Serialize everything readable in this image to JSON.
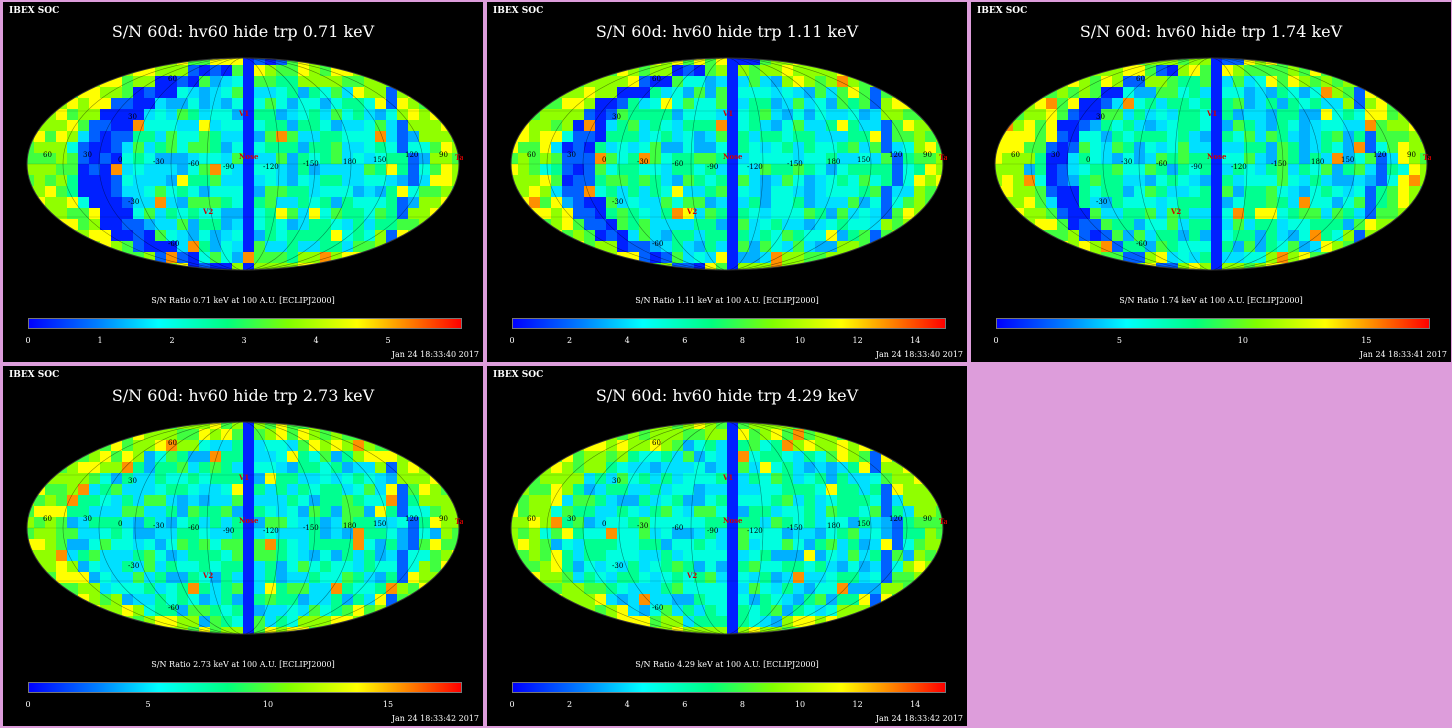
{
  "panels": [
    {
      "header": "IBEX SOC",
      "title": "S/N  60d: hv60 hide trp 0.71 keV",
      "caption": "S/N Ratio 0.71 keV at 100 A.U. [ECLIPJ2000]",
      "ticks": [
        "0",
        "1",
        "2",
        "3",
        "4",
        "5"
      ],
      "max": 6,
      "date": "Jan 24 18:33:40 2017",
      "map_labels": {
        "lat60": "60",
        "lat30": "30",
        "latm30": "-30",
        "latm60": "-60",
        "lon60": "60",
        "lon30": "30",
        "lon0": "0",
        "lonm30": "-30",
        "lonm60": "-60",
        "lonm90": "-90",
        "lonm120": "-120",
        "lonm150": "-150",
        "lon180": "180",
        "lon150": "150",
        "lon120": "120",
        "lon90": "90",
        "nose": "Nose",
        "tail": "Tail",
        "v1": "V1",
        "v2": "V2"
      }
    },
    {
      "header": "IBEX SOC",
      "title": "S/N  60d: hv60 hide trp 1.11 keV",
      "caption": "S/N Ratio 1.11 keV at 100 A.U. [ECLIPJ2000]",
      "ticks": [
        "0",
        "2",
        "4",
        "6",
        "8",
        "10",
        "12",
        "14"
      ],
      "max": 15,
      "date": "Jan 24 18:33:40 2017",
      "map_labels": {
        "lat60": "60",
        "lat30": "30",
        "latm30": "-30",
        "latm60": "-60",
        "lon60": "60",
        "lon30": "30",
        "lon0": "0",
        "lonm30": "-30",
        "lonm60": "-60",
        "lonm90": "-90",
        "lonm120": "-120",
        "lonm150": "-150",
        "lon180": "180",
        "lon150": "150",
        "lon120": "120",
        "lon90": "90",
        "nose": "Nose",
        "tail": "Tail",
        "v1": "V1",
        "v2": "V2"
      }
    },
    {
      "header": "IBEX SOC",
      "title": "S/N  60d: hv60 hide trp 1.74 keV",
      "caption": "S/N Ratio 1.74 keV at 100 A.U. [ECLIPJ2000]",
      "ticks": [
        "0",
        "5",
        "10",
        "15"
      ],
      "max": 17.5,
      "date": "Jan 24 18:33:41 2017",
      "map_labels": {
        "lat60": "60",
        "lat30": "30",
        "latm30": "-30",
        "latm60": "-60",
        "lon60": "60",
        "lon30": "30",
        "lon0": "0",
        "lonm30": "-30",
        "lonm60": "-60",
        "lonm90": "-90",
        "lonm120": "-120",
        "lonm150": "-150",
        "lon180": "180",
        "lon150": "150",
        "lon120": "120",
        "lon90": "90",
        "nose": "Nose",
        "tail": "Tail",
        "v1": "V1",
        "v2": "V2"
      }
    },
    {
      "header": "IBEX SOC",
      "title": "S/N  60d: hv60 hide trp 2.73 keV",
      "caption": "S/N Ratio 2.73 keV at 100 A.U. [ECLIPJ2000]",
      "ticks": [
        "0",
        "5",
        "10",
        "15"
      ],
      "max": 18,
      "date": "Jan 24 18:33:42 2017",
      "map_labels": {
        "lat60": "60",
        "lat30": "30",
        "latm30": "-30",
        "latm60": "-60",
        "lon60": "60",
        "lon30": "30",
        "lon0": "0",
        "lonm30": "-30",
        "lonm60": "-60",
        "lonm90": "-90",
        "lonm120": "-120",
        "lonm150": "-150",
        "lon180": "180",
        "lon150": "150",
        "lon120": "120",
        "lon90": "90",
        "nose": "Nose",
        "tail": "Tail",
        "v1": "V1",
        "v2": "V2"
      }
    },
    {
      "header": "IBEX SOC",
      "title": "S/N  60d: hv60 hide trp 4.29 keV",
      "caption": "S/N Ratio 4.29 keV at 100 A.U. [ECLIPJ2000]",
      "ticks": [
        "0",
        "2",
        "4",
        "6",
        "8",
        "10",
        "12",
        "14"
      ],
      "max": 15,
      "date": "Jan 24 18:33:42 2017",
      "map_labels": {
        "lat60": "60",
        "lat30": "30",
        "latm30": "-30",
        "latm60": "-60",
        "lon60": "60",
        "lon30": "30",
        "lon0": "0",
        "lonm30": "-30",
        "lonm60": "-60",
        "lonm90": "-90",
        "lonm120": "-120",
        "lonm150": "-150",
        "lon180": "180",
        "lon150": "150",
        "lon120": "120",
        "lon90": "90",
        "nose": "Nose",
        "tail": "Tail",
        "v1": "V1",
        "v2": "V2"
      }
    }
  ],
  "colors": {
    "background": "#dd9ddb",
    "panel": "#000000",
    "text": "#ffffff",
    "marker": "#d00000"
  }
}
